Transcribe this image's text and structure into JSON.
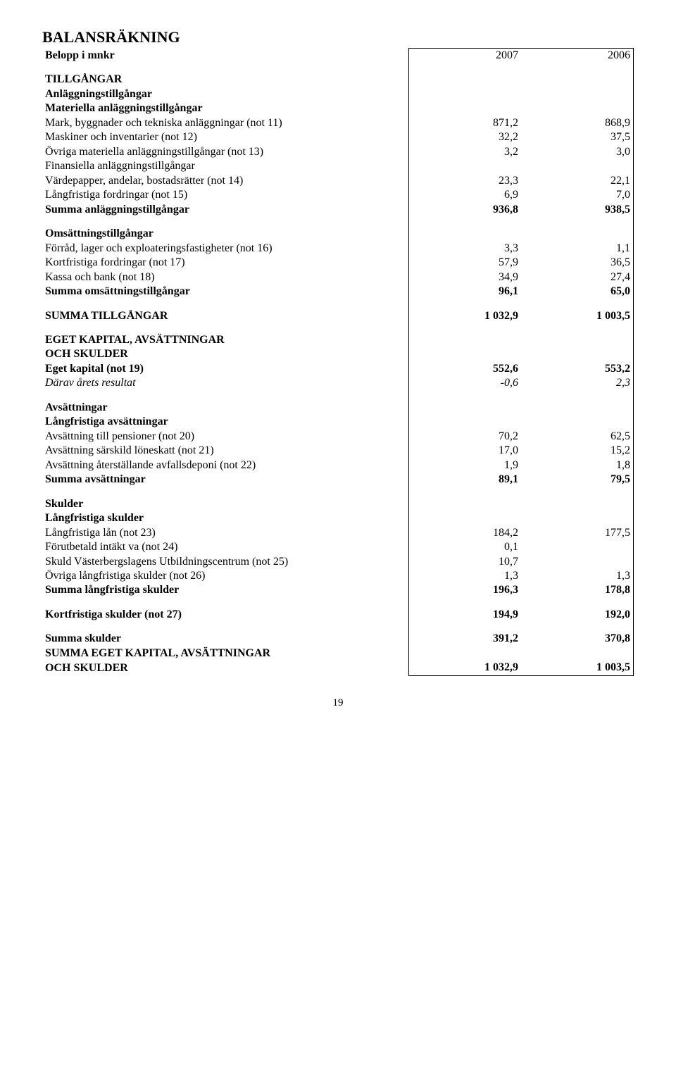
{
  "title": "BALANSRÄKNING",
  "unit_row": {
    "label": "Belopp i mnkr",
    "c1": "2007",
    "c2": "2006"
  },
  "sections": [
    {
      "rows": [
        {
          "label": "TILLGÅNGAR",
          "bold": true,
          "sp": true
        },
        {
          "label": "Anläggningstillgångar",
          "bold": true
        },
        {
          "label": "Materiella anläggningstillgångar",
          "bold": true
        },
        {
          "label": "Mark, byggnader och tekniska anläggningar (not 11)",
          "c1": "871,2",
          "c2": "868,9"
        },
        {
          "label": "Maskiner och inventarier (not 12)",
          "c1": "32,2",
          "c2": "37,5"
        },
        {
          "label": "Övriga materiella anläggningstillgångar (not 13)",
          "c1": "3,2",
          "c2": "3,0"
        },
        {
          "label": "Finansiella anläggningstillgångar"
        },
        {
          "label": "Värdepapper, andelar, bostadsrätter (not 14)",
          "c1": "23,3",
          "c2": "22,1"
        },
        {
          "label": "Långfristiga fordringar (not 15)",
          "c1": "6,9",
          "c2": "7,0"
        },
        {
          "label": "Summa anläggningstillgångar",
          "bold": true,
          "c1": "936,8",
          "c2": "938,5"
        }
      ]
    },
    {
      "rows": [
        {
          "label": "Omsättningstillgångar",
          "bold": true,
          "sp": true
        },
        {
          "label": "Förråd, lager och exploateringsfastigheter (not 16)",
          "c1": "3,3",
          "c2": "1,1"
        },
        {
          "label": "Kortfristiga fordringar (not 17)",
          "c1": "57,9",
          "c2": "36,5"
        },
        {
          "label": "Kassa och bank (not 18)",
          "c1": "34,9",
          "c2": "27,4"
        },
        {
          "label": "Summa omsättningstillgångar",
          "bold": true,
          "c1": "96,1",
          "c2": "65,0"
        }
      ]
    },
    {
      "rows": [
        {
          "label": "SUMMA TILLGÅNGAR",
          "bold": true,
          "c1": "1 032,9",
          "c2": "1 003,5",
          "sp": true
        }
      ]
    },
    {
      "rows": [
        {
          "label": "EGET KAPITAL, AVSÄTTNINGAR",
          "bold": true,
          "sp": true
        },
        {
          "label": "OCH SKULDER",
          "bold": true
        },
        {
          "label": "Eget kapital (not 19)",
          "bold": true,
          "c1": "552,6",
          "c2": "553,2"
        },
        {
          "label": "Därav årets resultat",
          "italic": true,
          "c1": "-0,6",
          "c2": "2,3"
        }
      ]
    },
    {
      "rows": [
        {
          "label": "Avsättningar",
          "bold": true,
          "sp": true
        },
        {
          "label": "Långfristiga avsättningar",
          "bold": true
        },
        {
          "label": "Avsättning till pensioner (not 20)",
          "c1": "70,2",
          "c2": "62,5"
        },
        {
          "label": "Avsättning särskild löneskatt (not 21)",
          "c1": "17,0",
          "c2": "15,2"
        },
        {
          "label": "Avsättning återställande avfallsdeponi (not 22)",
          "c1": "1,9",
          "c2": "1,8"
        },
        {
          "label": "Summa avsättningar",
          "bold": true,
          "c1": "89,1",
          "c2": "79,5"
        }
      ]
    },
    {
      "rows": [
        {
          "label": "Skulder",
          "bold": true,
          "sp": true
        },
        {
          "label": "Långfristiga skulder",
          "bold": true
        },
        {
          "label": "Långfristiga lån (not 23)",
          "c1": "184,2",
          "c2": "177,5"
        },
        {
          "label": "Förutbetald intäkt va (not 24)",
          "c1": "0,1"
        },
        {
          "label": "Skuld Västerbergslagens Utbildningscentrum (not 25)",
          "c1": "10,7"
        },
        {
          "label": "Övriga långfristiga skulder (not 26)",
          "c1": "1,3",
          "c2": "1,3"
        },
        {
          "label": "Summa långfristiga skulder",
          "bold": true,
          "c1": "196,3",
          "c2": "178,8"
        }
      ]
    },
    {
      "rows": [
        {
          "label": "Kortfristiga skulder (not 27)",
          "bold": true,
          "c1": "194,9",
          "c2": "192,0",
          "sp": true
        }
      ]
    },
    {
      "rows": [
        {
          "label": "Summa skulder",
          "bold": true,
          "c1": "391,2",
          "c2": "370,8",
          "sp": true
        },
        {
          "label": "SUMMA EGET KAPITAL, AVSÄTTNINGAR",
          "bold": true
        },
        {
          "label": "OCH SKULDER",
          "bold": true,
          "c1": "1 032,9",
          "c2": "1 003,5"
        }
      ]
    }
  ],
  "pagenum": "19"
}
